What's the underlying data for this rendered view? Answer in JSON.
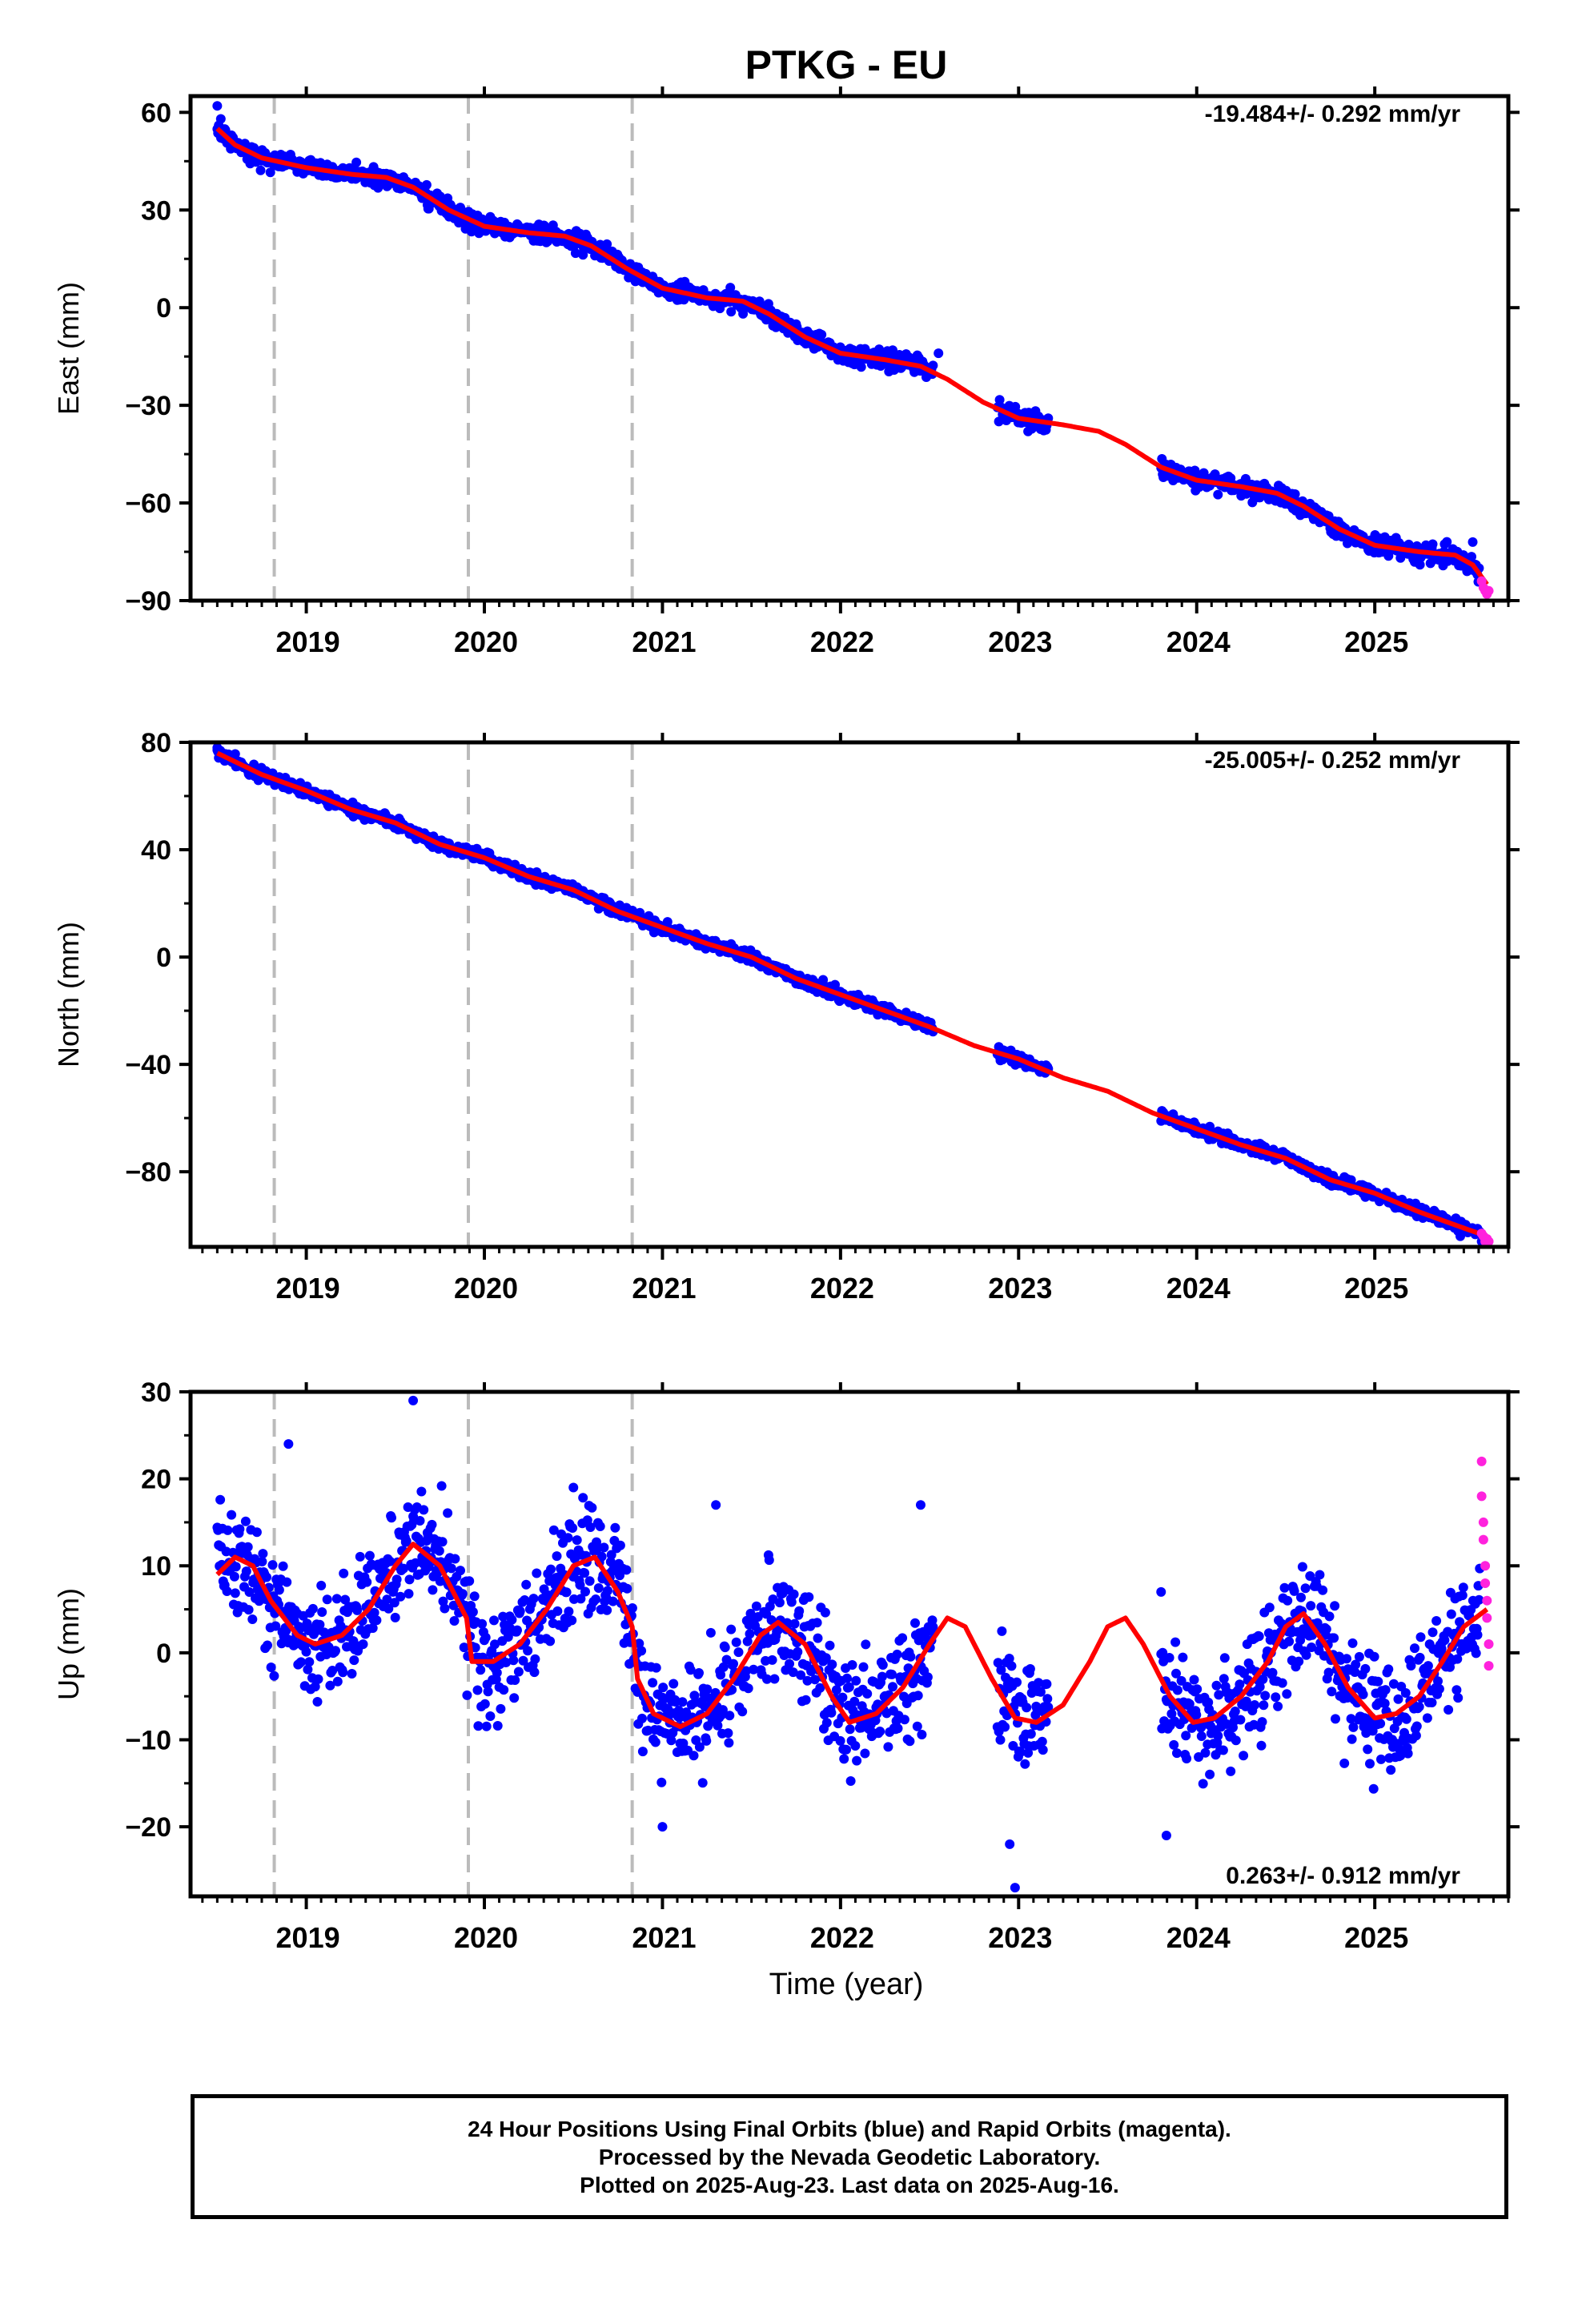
{
  "title": "PTKG - EU",
  "xlabel": "Time (year)",
  "year_ticks": [
    "2019",
    "2020",
    "2021",
    "2022",
    "2023",
    "2024",
    "2025"
  ],
  "footer": {
    "line1": "24 Hour Positions Using Final Orbits (blue) and Rapid Orbits (magenta).",
    "line2": "Processed by the Nevada Geodetic Laboratory.",
    "line3": "Plotted on 2025-Aug-23. Last data on 2025-Aug-16."
  },
  "colors": {
    "final": "#0000ff",
    "rapid": "#ff22dd",
    "model": "#ff0000",
    "break": "#bbbbbb",
    "axis": "#000000"
  },
  "chart_data": [
    {
      "type": "scatter",
      "ylabel": "East (mm)",
      "rate": "-19.484+/- 0.292 mm/yr",
      "xlim": [
        2018.35,
        2025.75
      ],
      "ylim": [
        -90,
        65
      ],
      "yticks": [
        60,
        30,
        0,
        -30,
        -60,
        -90
      ],
      "breaks": [
        2018.82,
        2019.91,
        2020.83
      ],
      "gaps": [
        [
          2022.52,
          2022.88
        ],
        [
          2023.17,
          2023.8
        ]
      ],
      "model": [
        [
          2018.5,
          55
        ],
        [
          2018.6,
          50
        ],
        [
          2018.75,
          46
        ],
        [
          2019.0,
          43
        ],
        [
          2019.25,
          41
        ],
        [
          2019.45,
          40
        ],
        [
          2019.6,
          37
        ],
        [
          2019.8,
          30
        ],
        [
          2020.0,
          25
        ],
        [
          2020.25,
          23
        ],
        [
          2020.45,
          22
        ],
        [
          2020.6,
          19
        ],
        [
          2020.8,
          12
        ],
        [
          2021.0,
          6
        ],
        [
          2021.25,
          3
        ],
        [
          2021.45,
          2
        ],
        [
          2021.6,
          -2
        ],
        [
          2021.8,
          -9
        ],
        [
          2022.0,
          -14
        ],
        [
          2022.25,
          -16
        ],
        [
          2022.45,
          -18
        ],
        [
          2022.6,
          -22
        ],
        [
          2022.8,
          -29
        ],
        [
          2023.0,
          -34
        ],
        [
          2023.25,
          -36
        ],
        [
          2023.45,
          -38
        ],
        [
          2023.6,
          -42
        ],
        [
          2023.8,
          -49
        ],
        [
          2024.0,
          -53
        ],
        [
          2024.25,
          -55
        ],
        [
          2024.45,
          -57
        ],
        [
          2024.6,
          -61
        ],
        [
          2024.8,
          -68
        ],
        [
          2025.0,
          -73
        ],
        [
          2025.25,
          -75
        ],
        [
          2025.45,
          -76
        ],
        [
          2025.55,
          -79
        ],
        [
          2025.63,
          -85
        ]
      ],
      "noise": 2.0,
      "outliers": [
        [
          2018.5,
          62
        ],
        [
          2018.52,
          58
        ],
        [
          2022.55,
          -14
        ],
        [
          2025.55,
          -72
        ]
      ],
      "rapid": [
        [
          2025.6,
          -84
        ],
        [
          2025.61,
          -86
        ],
        [
          2025.62,
          -87
        ],
        [
          2025.63,
          -88
        ],
        [
          2025.64,
          -87
        ]
      ],
      "seed": 11
    },
    {
      "type": "scatter",
      "ylabel": "North (mm)",
      "rate": "-25.005+/- 0.252 mm/yr",
      "xlim": [
        2018.35,
        2025.75
      ],
      "ylim": [
        -108,
        80
      ],
      "yticks": [
        80,
        40,
        0,
        -40,
        -80
      ],
      "breaks": [
        2018.82,
        2019.91,
        2020.83
      ],
      "gaps": [
        [
          2022.52,
          2022.88
        ],
        [
          2023.17,
          2023.8
        ]
      ],
      "model": [
        [
          2018.5,
          76
        ],
        [
          2018.75,
          68
        ],
        [
          2019.0,
          62
        ],
        [
          2019.25,
          55
        ],
        [
          2019.5,
          50
        ],
        [
          2019.75,
          42
        ],
        [
          2020.0,
          37
        ],
        [
          2020.25,
          30
        ],
        [
          2020.5,
          25
        ],
        [
          2020.75,
          17
        ],
        [
          2021.0,
          11
        ],
        [
          2021.25,
          5
        ],
        [
          2021.5,
          0
        ],
        [
          2021.75,
          -8
        ],
        [
          2022.0,
          -14
        ],
        [
          2022.25,
          -20
        ],
        [
          2022.5,
          -26
        ],
        [
          2022.75,
          -33
        ],
        [
          2023.0,
          -38
        ],
        [
          2023.25,
          -45
        ],
        [
          2023.5,
          -50
        ],
        [
          2023.75,
          -58
        ],
        [
          2024.0,
          -64
        ],
        [
          2024.25,
          -70
        ],
        [
          2024.5,
          -75
        ],
        [
          2024.75,
          -83
        ],
        [
          2025.0,
          -88
        ],
        [
          2025.25,
          -95
        ],
        [
          2025.5,
          -101
        ],
        [
          2025.63,
          -104
        ]
      ],
      "noise": 1.6,
      "outliers": [
        [
          2018.5,
          78
        ],
        [
          2025.6,
          -106
        ]
      ],
      "rapid": [
        [
          2025.6,
          -103
        ],
        [
          2025.61,
          -104
        ],
        [
          2025.62,
          -106
        ],
        [
          2025.63,
          -105
        ],
        [
          2025.64,
          -106
        ]
      ],
      "seed": 23
    },
    {
      "type": "scatter",
      "ylabel": "Up (mm)",
      "rate": "0.263+/- 0.912 mm/yr",
      "xlim": [
        2018.35,
        2025.75
      ],
      "ylim": [
        -28,
        30
      ],
      "yticks": [
        30,
        20,
        10,
        0,
        -10,
        -20
      ],
      "breaks": [
        2018.82,
        2019.91,
        2020.83
      ],
      "gaps": [
        [
          2022.52,
          2022.88
        ],
        [
          2023.17,
          2023.8
        ]
      ],
      "model": [
        [
          2018.5,
          9
        ],
        [
          2018.6,
          11
        ],
        [
          2018.7,
          10
        ],
        [
          2018.8,
          6
        ],
        [
          2018.95,
          2
        ],
        [
          2019.05,
          1
        ],
        [
          2019.2,
          2
        ],
        [
          2019.35,
          5
        ],
        [
          2019.5,
          10
        ],
        [
          2019.6,
          12.5
        ],
        [
          2019.75,
          10
        ],
        [
          2019.9,
          4
        ],
        [
          2019.93,
          -1
        ],
        [
          2020.05,
          -1
        ],
        [
          2020.2,
          1
        ],
        [
          2020.35,
          5
        ],
        [
          2020.5,
          10
        ],
        [
          2020.62,
          11
        ],
        [
          2020.75,
          7
        ],
        [
          2020.83,
          3
        ],
        [
          2020.86,
          -3
        ],
        [
          2020.95,
          -7
        ],
        [
          2021.1,
          -8.5
        ],
        [
          2021.25,
          -7
        ],
        [
          2021.4,
          -3
        ],
        [
          2021.55,
          2
        ],
        [
          2021.65,
          3.5
        ],
        [
          2021.8,
          1
        ],
        [
          2021.95,
          -5
        ],
        [
          2022.05,
          -8
        ],
        [
          2022.2,
          -7
        ],
        [
          2022.35,
          -4
        ],
        [
          2022.5,
          1
        ],
        [
          2022.6,
          4
        ],
        [
          2022.7,
          3
        ],
        [
          2022.85,
          -3
        ],
        [
          2022.98,
          -7.5
        ],
        [
          2023.1,
          -8
        ],
        [
          2023.25,
          -6
        ],
        [
          2023.4,
          -1
        ],
        [
          2023.5,
          3
        ],
        [
          2023.6,
          4
        ],
        [
          2023.7,
          1
        ],
        [
          2023.85,
          -5
        ],
        [
          2023.98,
          -8
        ],
        [
          2024.1,
          -7.5
        ],
        [
          2024.25,
          -5
        ],
        [
          2024.4,
          -1
        ],
        [
          2024.5,
          3
        ],
        [
          2024.6,
          4.5
        ],
        [
          2024.72,
          1
        ],
        [
          2024.85,
          -4
        ],
        [
          2025.0,
          -7.5
        ],
        [
          2025.12,
          -7
        ],
        [
          2025.25,
          -5
        ],
        [
          2025.38,
          -1
        ],
        [
          2025.5,
          3
        ],
        [
          2025.63,
          5
        ]
      ],
      "noise": 4.5,
      "outliers": [
        [
          2019.6,
          29
        ],
        [
          2018.9,
          24
        ],
        [
          2021.0,
          -20
        ],
        [
          2022.98,
          -27
        ],
        [
          2022.95,
          -22
        ],
        [
          2022.45,
          17
        ],
        [
          2021.3,
          17
        ],
        [
          2020.5,
          19
        ],
        [
          2023.83,
          -21
        ],
        [
          2023.8,
          7
        ]
      ],
      "rapid": [
        [
          2025.6,
          22
        ],
        [
          2025.6,
          18
        ],
        [
          2025.61,
          15
        ],
        [
          2025.61,
          13
        ],
        [
          2025.62,
          10
        ],
        [
          2025.62,
          8
        ],
        [
          2025.63,
          6
        ],
        [
          2025.63,
          4
        ],
        [
          2025.64,
          1
        ],
        [
          2025.64,
          -1.5
        ]
      ],
      "seed": 37
    }
  ]
}
